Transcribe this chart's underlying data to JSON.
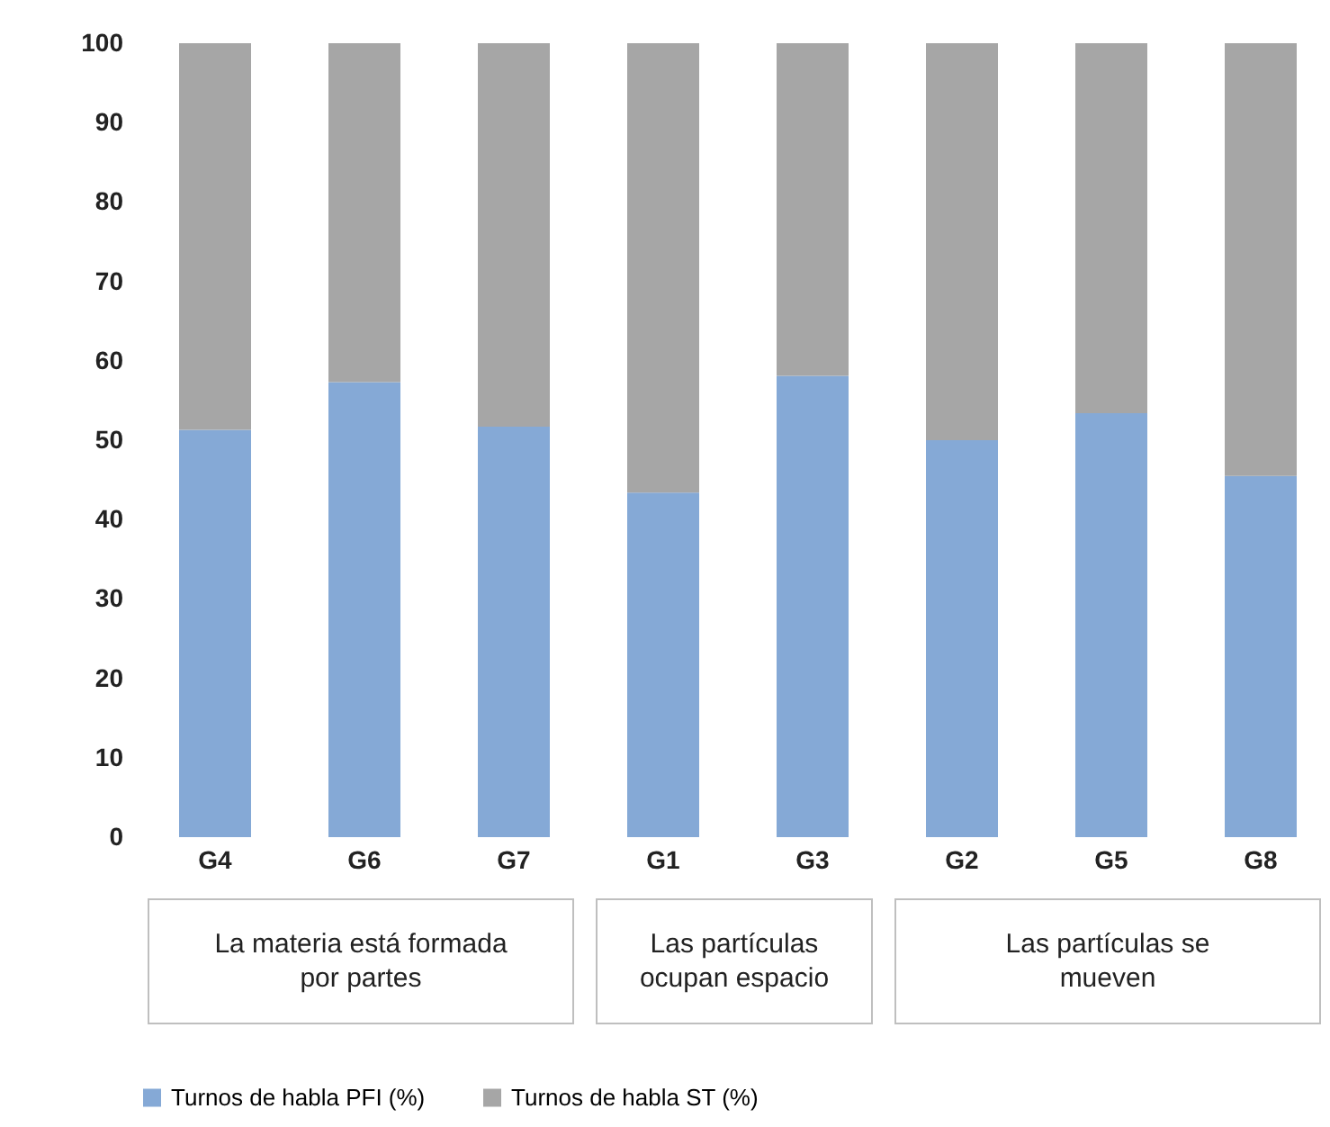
{
  "chart_data": {
    "type": "bar",
    "stacked": true,
    "categories": [
      "G4",
      "G6",
      "G7",
      "G1",
      "G3",
      "G2",
      "G5",
      "G8"
    ],
    "series": [
      {
        "name": "Turnos de habla PFI (%)",
        "color": "#85a9d6",
        "values": [
          51.3,
          57.3,
          51.7,
          43.4,
          58.1,
          50.0,
          53.4,
          45.5
        ]
      },
      {
        "name": "Turnos de habla ST (%)",
        "color": "#a6a6a6",
        "values": [
          48.7,
          42.7,
          48.3,
          56.6,
          41.9,
          50.0,
          46.6,
          54.5
        ]
      }
    ],
    "ylim": [
      0,
      100
    ],
    "yticks": [
      0,
      10,
      20,
      30,
      40,
      50,
      60,
      70,
      80,
      90,
      100
    ],
    "legend": "bottom",
    "annotations": [
      "La materia está formada por partes",
      "Las partículas ocupan espacio",
      "Las partículas se mueven"
    ]
  }
}
